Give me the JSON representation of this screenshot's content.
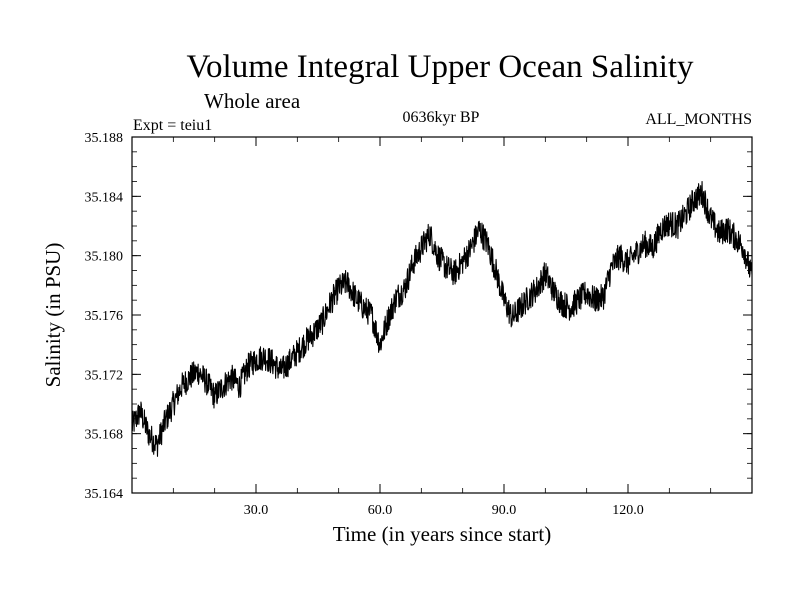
{
  "chart_data": {
    "type": "line",
    "title": "Volume Integral Upper Ocean Salinity",
    "subtitle": "Whole area",
    "experiment_label": "Expt = teiu1",
    "period_label": "0636kyr BP",
    "months_label": "ALL_MONTHS",
    "xlabel": "Time (in years since start)",
    "ylabel": "Salinity (in PSU)",
    "xlim": [
      0,
      150
    ],
    "ylim": [
      35.164,
      35.188
    ],
    "x_ticks": [
      30.0,
      60.0,
      90.0,
      120.0
    ],
    "x_tick_labels": [
      "30.0",
      "60.0",
      "90.0",
      "120.0"
    ],
    "y_ticks": [
      35.164,
      35.168,
      35.172,
      35.176,
      35.18,
      35.184,
      35.188
    ],
    "y_tick_labels": [
      "35.164",
      "35.168",
      "35.172",
      "35.176",
      "35.180",
      "35.184",
      "35.188"
    ],
    "grid": false,
    "series": [
      {
        "name": "salinity",
        "color": "#000000",
        "x": [
          0,
          2,
          4,
          6,
          8,
          10,
          12,
          14,
          16,
          18,
          20,
          22,
          24,
          26,
          28,
          30,
          32,
          34,
          36,
          38,
          40,
          42,
          44,
          46,
          48,
          50,
          52,
          54,
          56,
          58,
          60,
          62,
          64,
          66,
          68,
          70,
          72,
          74,
          76,
          78,
          80,
          82,
          84,
          86,
          88,
          90,
          92,
          94,
          96,
          98,
          100,
          102,
          104,
          106,
          108,
          110,
          112,
          114,
          116,
          118,
          120,
          122,
          124,
          126,
          128,
          130,
          132,
          134,
          136,
          138,
          140,
          142,
          144,
          146,
          148,
          150
        ],
        "values": [
          35.1685,
          35.1695,
          35.168,
          35.1672,
          35.1688,
          35.17,
          35.1712,
          35.1718,
          35.1722,
          35.1715,
          35.1705,
          35.1712,
          35.1718,
          35.1712,
          35.1725,
          35.173,
          35.1732,
          35.1728,
          35.1722,
          35.1728,
          35.1735,
          35.1742,
          35.1748,
          35.1755,
          35.1768,
          35.1778,
          35.1782,
          35.1772,
          35.1765,
          35.176,
          35.174,
          35.1758,
          35.1772,
          35.1778,
          35.1795,
          35.1805,
          35.1815,
          35.18,
          35.1792,
          35.1788,
          35.1796,
          35.1805,
          35.1818,
          35.1808,
          35.179,
          35.177,
          35.1758,
          35.1765,
          35.1772,
          35.1778,
          35.1788,
          35.1776,
          35.1768,
          35.1765,
          35.177,
          35.1775,
          35.177,
          35.1772,
          35.1792,
          35.18,
          35.1795,
          35.1802,
          35.1808,
          35.1805,
          35.1818,
          35.1822,
          35.182,
          35.1828,
          35.1838,
          35.1842,
          35.1825,
          35.1815,
          35.1818,
          35.1812,
          35.1805,
          35.1785
        ]
      }
    ]
  }
}
